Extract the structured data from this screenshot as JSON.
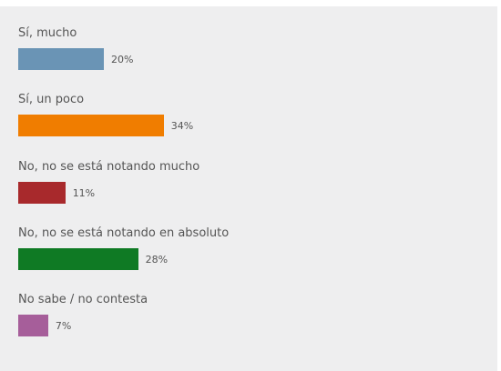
{
  "chart_data": {
    "type": "bar",
    "orientation": "horizontal",
    "categories": [
      "Sí, mucho",
      "Sí, un poco",
      "No, no se está notando mucho",
      "No, no se está notando en absoluto",
      "No sabe / no contesta"
    ],
    "values": [
      20,
      34,
      11,
      28,
      7
    ],
    "value_labels": [
      "20%",
      "34%",
      "11%",
      "28%",
      "7%"
    ],
    "colors": [
      "#6a94b5",
      "#f07d00",
      "#a8292c",
      "#0f7a24",
      "#a65e9a"
    ],
    "title": "",
    "xlabel": "",
    "ylabel": "",
    "xlim": [
      0,
      100
    ],
    "grid": false,
    "legend": "none"
  }
}
